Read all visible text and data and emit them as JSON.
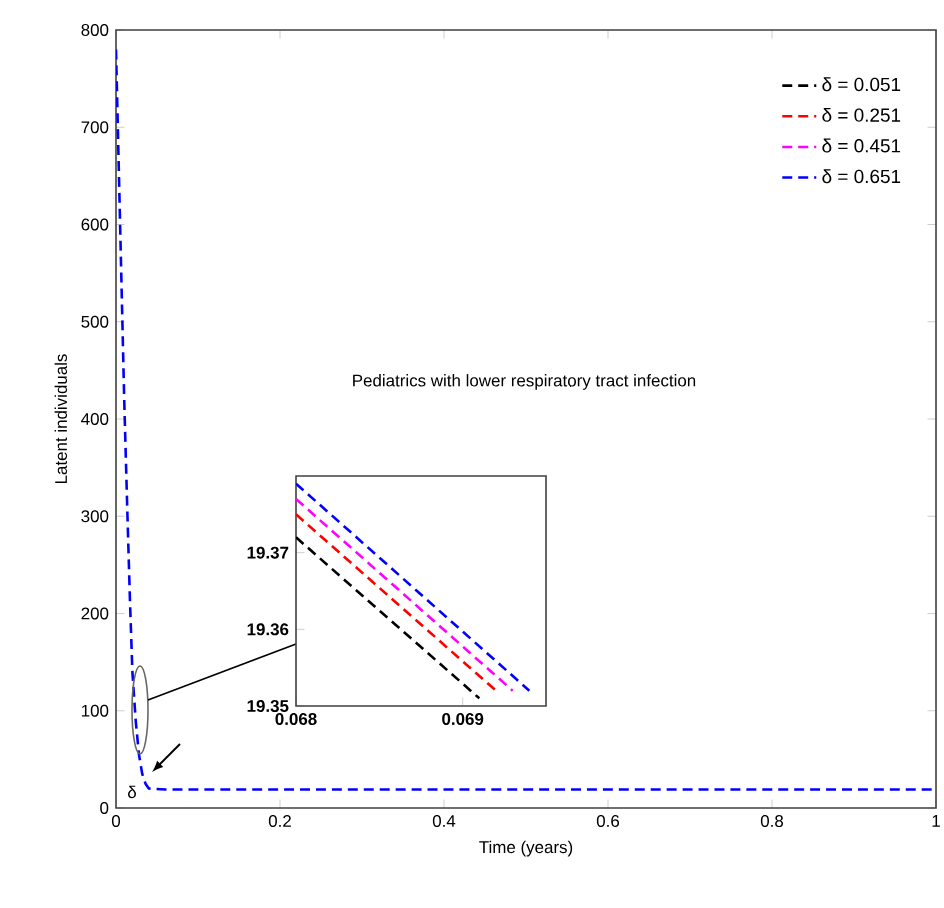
{
  "chart_data": [
    {
      "type": "line",
      "xlabel": "Time (years)",
      "ylabel": "Latent individuals",
      "xlim": [
        0,
        1
      ],
      "ylim": [
        0,
        800
      ],
      "xticks": [
        0,
        0.2,
        0.4,
        0.6,
        0.8,
        1
      ],
      "yticks": [
        0,
        100,
        200,
        300,
        400,
        500,
        600,
        700,
        800
      ],
      "x": [
        0,
        0.005,
        0.01,
        0.014,
        0.017,
        0.02,
        0.024,
        0.028,
        0.032,
        0.036,
        0.04,
        0.06,
        1
      ],
      "line_style": "dashed",
      "legend": "top right",
      "annotations": [
        "Pediatrics with lower respiratory tract infection",
        "δ"
      ],
      "series": [
        {
          "name": "δ = 0.051",
          "color": "#000000",
          "values": [
            null,
            null,
            null,
            null,
            null,
            null,
            null,
            null,
            null,
            null,
            null,
            null,
            null
          ]
        },
        {
          "name": "δ = 0.251",
          "color": "#ff0000",
          "values": [
            null,
            null,
            null,
            null,
            null,
            null,
            null,
            null,
            null,
            null,
            null,
            null,
            null
          ]
        },
        {
          "name": "δ = 0.451",
          "color": "#ff00ff",
          "values": [
            null,
            null,
            null,
            null,
            null,
            null,
            null,
            null,
            null,
            null,
            null,
            null,
            null
          ]
        },
        {
          "name": "δ = 0.651",
          "color": "#0000ff",
          "values": [
            780,
            600,
            420,
            300,
            214,
            140,
            90,
            55,
            35,
            25,
            20,
            19,
            19
          ]
        }
      ]
    },
    {
      "type": "line",
      "xlim": [
        0.068,
        0.0695
      ],
      "ylim": [
        19.35,
        19.38
      ],
      "xticks": [
        0.068,
        0.069
      ],
      "yticks": [
        19.35,
        19.36,
        19.37
      ],
      "line_style": "dashed",
      "series": [
        {
          "color": "#000000",
          "x": [
            0.068,
            0.0691
          ],
          "values": [
            19.372,
            19.351
          ]
        },
        {
          "color": "#ff0000",
          "x": [
            0.068,
            0.0692
          ],
          "values": [
            19.375,
            19.352
          ]
        },
        {
          "color": "#ff00ff",
          "x": [
            0.068,
            0.0693
          ],
          "values": [
            19.377,
            19.352
          ]
        },
        {
          "color": "#0000ff",
          "x": [
            0.068,
            0.0694
          ],
          "values": [
            19.379,
            19.352
          ]
        }
      ]
    }
  ]
}
